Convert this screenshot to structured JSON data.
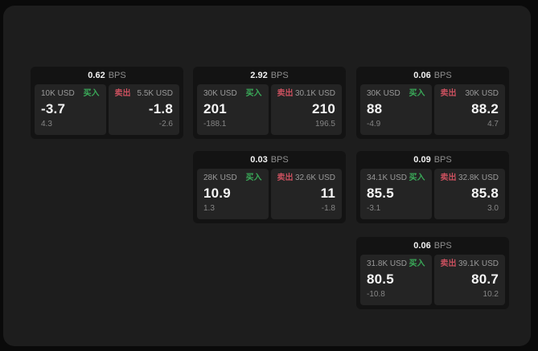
{
  "labels": {
    "bps_unit": "BPS",
    "buy": "买入",
    "sell": "卖出"
  },
  "colors": {
    "canvas_bg": "#0a0a0a",
    "window_bg": "#1d1d1d",
    "card_bg": "#131313",
    "panel_bg": "#242424",
    "buy_green": "#3aab59",
    "sell_red": "#c9505e",
    "value_white": "#f5f5f5",
    "label_gray": "#9a9a9a",
    "sub_gray": "#858585"
  },
  "cards": [
    {
      "bps": "0.62",
      "buy": {
        "size": "10K USD",
        "value": "-3.7",
        "sub": "4.3"
      },
      "sell": {
        "size": "5.5K USD",
        "value": "-1.8",
        "sub": "-2.6"
      }
    },
    {
      "bps": "2.92",
      "buy": {
        "size": "30K USD",
        "value": "201",
        "sub": "-188.1"
      },
      "sell": {
        "size": "30.1K USD",
        "value": "210",
        "sub": "196.5"
      }
    },
    {
      "bps": "0.06",
      "buy": {
        "size": "30K USD",
        "value": "88",
        "sub": "-4.9"
      },
      "sell": {
        "size": "30K USD",
        "value": "88.2",
        "sub": "4.7"
      }
    },
    {
      "bps": "0.03",
      "buy": {
        "size": "28K USD",
        "value": "10.9",
        "sub": "1.3"
      },
      "sell": {
        "size": "32.6K USD",
        "value": "11",
        "sub": "-1.8"
      }
    },
    {
      "bps": "0.09",
      "buy": {
        "size": "34.1K USD",
        "value": "85.5",
        "sub": "-3.1"
      },
      "sell": {
        "size": "32.8K USD",
        "value": "85.8",
        "sub": "3.0"
      }
    },
    {
      "bps": "0.06",
      "buy": {
        "size": "31.8K USD",
        "value": "80.5",
        "sub": "-10.8"
      },
      "sell": {
        "size": "39.1K USD",
        "value": "80.7",
        "sub": "10.2"
      }
    }
  ]
}
